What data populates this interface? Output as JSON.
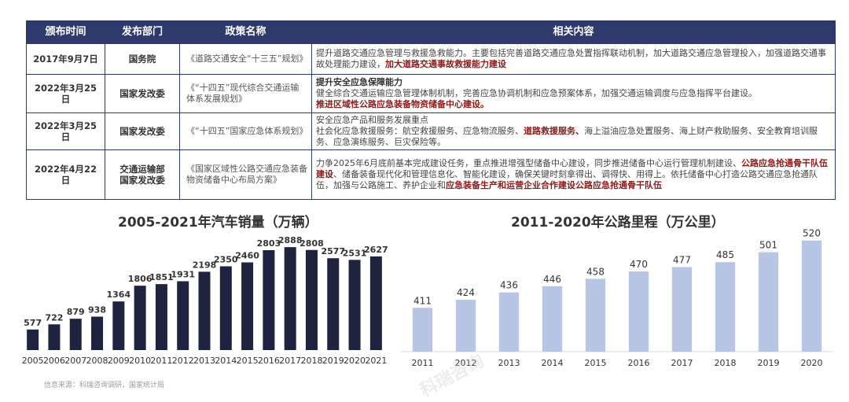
{
  "table": {
    "headers": [
      "颁布时间",
      "发布部门",
      "政策名称",
      "相关内容"
    ],
    "rows": [
      {
        "date": "2017年9月7日",
        "dept": "国务院",
        "name": "《道路交通安全“十三五”规划》",
        "content": "提升道路交通应急管理与救援急救能力。主要包括完善道路交通应急处置指挥联动机制，加大道路交通应急管理投入，加强道路交通事故处理能力建设，",
        "highlight": "加大道路交通事故救援能力建设"
      },
      {
        "date": "2022年3月25日",
        "dept": "国家发改委",
        "name": "《“十四五”现代综合交通运输体系发展规划》",
        "content_heading": "提升安全应急保障能力",
        "content": "健全综合交通运输应急管理体制机制，完善应急协调机制和应急预案体系，加强交通运输调度与应急指挥平台建设。",
        "highlight": "推进区域性公路应急装备物资储备中心建设。"
      },
      {
        "date": "2022年3月25日",
        "dept": "国家发改委",
        "name": "《“十四五”国家应急体系规划》",
        "content_heading": "安全应急产品和服务发展重点",
        "content_a": "社会化应急救援服务：航空救援服务、应急物流服务、",
        "highlight": "道路救援服务、",
        "content_b": "海上溢油应急处置服务、海上财产救助服务、安全教育培训服务、应急演练服务、巨灾保险等。"
      },
      {
        "date": "2022年4月22日",
        "dept": "交通运输部\n国家发改委",
        "name": "《国家区域性公路交通应急装备物资储备中心布局方案》",
        "content_a": "力争2025年6月底前基本完成建设任务，重点推进增强型储备中心建设，同步推进储备中心运行管理机制建设、",
        "highlight_a": "公路应急抢通骨干队伍建设",
        "content_b": "、储备装备现代化和管理信息化、智能化建设，确保关键时刻拿得出、调得快、用得上。依托储备中心打造公路交通应急抢通队伍，加强与公路施工、养护企业和",
        "highlight_b": "应急装备生产和运营企业合作建设公路应急抢通骨干队伍"
      }
    ]
  },
  "chart_data": [
    {
      "type": "bar",
      "title": "2005-2021年汽车销量（万辆）",
      "categories": [
        "2005",
        "2006",
        "2007",
        "2008",
        "2009",
        "2010",
        "2011",
        "2012",
        "2013",
        "2014",
        "2015",
        "2016",
        "2017",
        "2018",
        "2019",
        "2020",
        "2021"
      ],
      "values": [
        577,
        722,
        879,
        938,
        1364,
        1806,
        1851,
        1931,
        2198,
        2350,
        2460,
        2803,
        2888,
        2808,
        2577,
        2531,
        2627
      ],
      "color": "#1e2440",
      "ylim": [
        0,
        3200
      ]
    },
    {
      "type": "bar",
      "title": "2011-2020年公路里程（万公里）",
      "categories": [
        "2011",
        "2012",
        "2013",
        "2014",
        "2015",
        "2016",
        "2017",
        "2018",
        "2019",
        "2020"
      ],
      "values": [
        411,
        424,
        436,
        446,
        458,
        470,
        477,
        485,
        501,
        520
      ],
      "color": "#b7c6e4",
      "ylim": [
        340,
        540
      ]
    }
  ],
  "source_note": "信息来源：科瑞咨询调研，国家统计局",
  "watermark": "科瑞咨询"
}
